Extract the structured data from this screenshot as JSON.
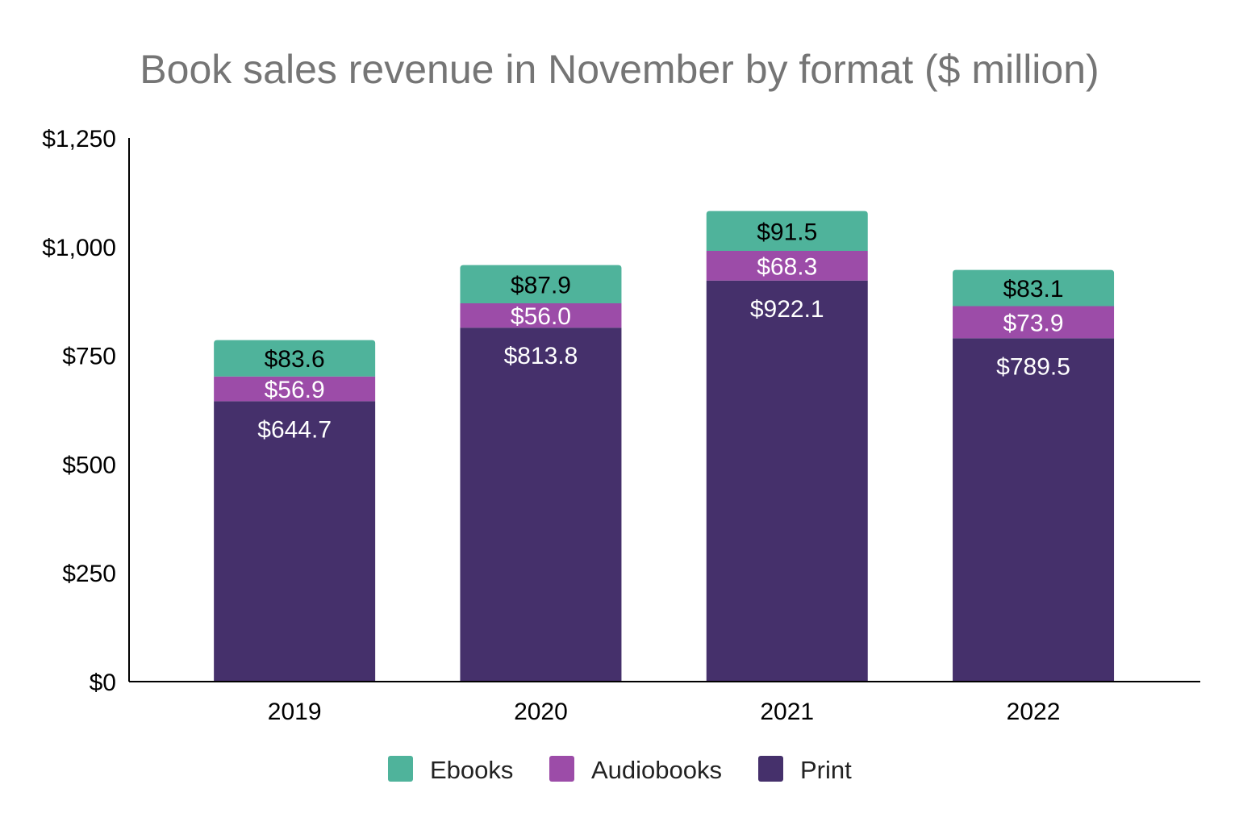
{
  "chart_data": {
    "type": "bar",
    "stacked": true,
    "title": "Book sales revenue in November by format ($ million)",
    "xlabel": "",
    "ylabel": "",
    "categories": [
      "2019",
      "2020",
      "2021",
      "2022"
    ],
    "ylim": [
      0,
      1250
    ],
    "yticks": [
      0,
      250,
      500,
      750,
      1000,
      1250
    ],
    "ytick_labels": [
      "$0",
      "$250",
      "$500",
      "$750",
      "$1,000",
      "$1,250"
    ],
    "grid": false,
    "legend_position": "bottom",
    "series": [
      {
        "name": "Print",
        "color": "#45306b",
        "label_color": "#ffffff",
        "values": [
          644.7,
          813.8,
          922.1,
          789.5
        ],
        "labels": [
          "$644.7",
          "$813.8",
          "$922.1",
          "$789.5"
        ]
      },
      {
        "name": "Audiobooks",
        "color": "#9c4ca8",
        "label_color": "#ffffff",
        "values": [
          56.9,
          56.0,
          68.3,
          73.9
        ],
        "labels": [
          "$56.9",
          "$56.0",
          "$68.3",
          "$73.9"
        ]
      },
      {
        "name": "Ebooks",
        "color": "#4fb39b",
        "label_color": "#000000",
        "values": [
          83.6,
          87.9,
          91.5,
          83.1
        ],
        "labels": [
          "$83.6",
          "$87.9",
          "$91.5",
          "$83.1"
        ]
      }
    ],
    "legend_order": [
      "Ebooks",
      "Audiobooks",
      "Print"
    ]
  }
}
